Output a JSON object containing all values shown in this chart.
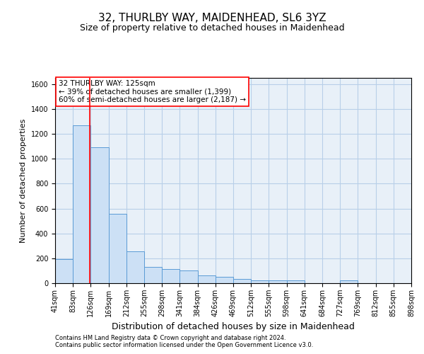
{
  "title": "32, THURLBY WAY, MAIDENHEAD, SL6 3YZ",
  "subtitle": "Size of property relative to detached houses in Maidenhead",
  "xlabel": "Distribution of detached houses by size in Maidenhead",
  "ylabel": "Number of detached properties",
  "footnote1": "Contains HM Land Registry data © Crown copyright and database right 2024.",
  "footnote2": "Contains public sector information licensed under the Open Government Licence v3.0.",
  "annotation_line1": "32 THURLBY WAY: 125sqm",
  "annotation_line2": "← 39% of detached houses are smaller (1,399)",
  "annotation_line3": "60% of semi-detached houses are larger (2,187) →",
  "bar_left_edges": [
    41,
    84,
    127,
    170,
    213,
    256,
    299,
    342,
    385,
    428,
    471,
    514,
    557,
    600,
    643,
    686,
    729,
    772,
    815,
    858
  ],
  "bar_widths": [
    43,
    43,
    43,
    43,
    43,
    43,
    43,
    43,
    43,
    43,
    43,
    43,
    43,
    43,
    43,
    43,
    43,
    43,
    43,
    43
  ],
  "bar_heights": [
    195,
    1270,
    1090,
    555,
    255,
    130,
    115,
    100,
    60,
    50,
    35,
    25,
    20,
    20,
    0,
    0,
    25,
    0,
    0,
    0
  ],
  "bar_facecolor": "#cce0f5",
  "bar_edgecolor": "#5b9bd5",
  "x_tick_labels": [
    "41sqm",
    "83sqm",
    "126sqm",
    "169sqm",
    "212sqm",
    "255sqm",
    "298sqm",
    "341sqm",
    "384sqm",
    "426sqm",
    "469sqm",
    "512sqm",
    "555sqm",
    "598sqm",
    "641sqm",
    "684sqm",
    "727sqm",
    "769sqm",
    "812sqm",
    "855sqm",
    "898sqm"
  ],
  "x_tick_positions": [
    41,
    84,
    127,
    170,
    213,
    256,
    299,
    342,
    385,
    428,
    471,
    514,
    557,
    600,
    643,
    686,
    729,
    772,
    815,
    858,
    901
  ],
  "ylim": [
    0,
    1650
  ],
  "yticks": [
    0,
    200,
    400,
    600,
    800,
    1000,
    1200,
    1400,
    1600
  ],
  "xlim": [
    41,
    901
  ],
  "property_line_x": 125,
  "grid_color": "#b8cfe8",
  "bg_color": "#e8f0f8",
  "title_fontsize": 11,
  "subtitle_fontsize": 9,
  "axis_label_fontsize": 8,
  "tick_fontsize": 7,
  "annotation_fontsize": 7.5,
  "footnote_fontsize": 6
}
